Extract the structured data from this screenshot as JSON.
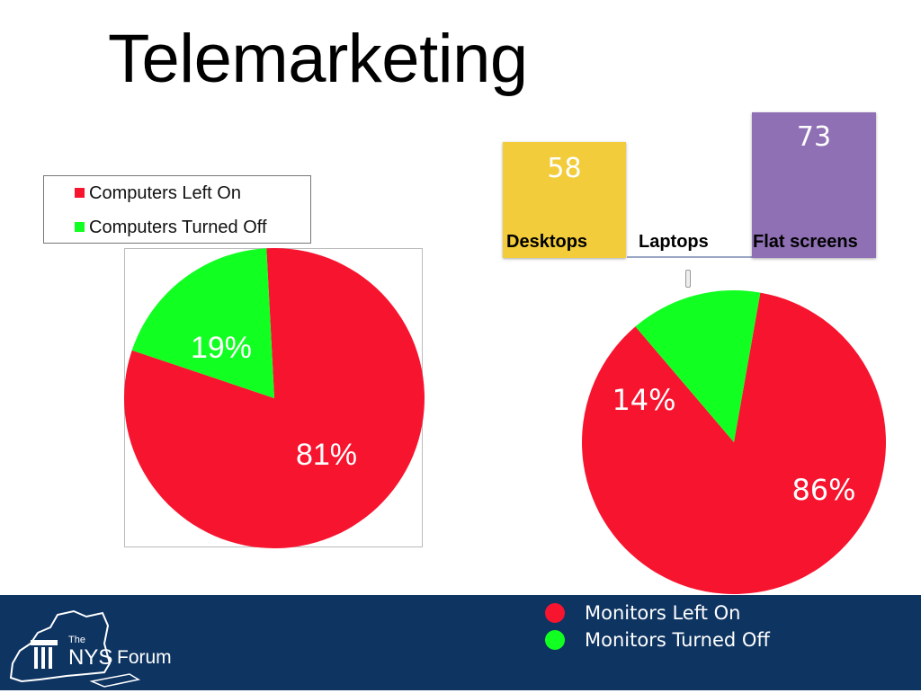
{
  "title": "Telemarketing",
  "colors": {
    "red": "#f7142f",
    "green": "#12ff22",
    "footer_bg": "#0e3462",
    "desktops_tile": "#f2cc3a",
    "flat_tile": "#8f70b4"
  },
  "logo": {
    "the": "The",
    "nys": "NYS",
    "forum": "Forum",
    "icon": "new-york-state-map-logo"
  },
  "chart_data": [
    {
      "type": "pie",
      "title": "",
      "legend": [
        "Computers Left On",
        "Computers Turned Off"
      ],
      "slices": [
        {
          "label": "Computers Left On",
          "value": 81,
          "display": "81%",
          "color": "#f7142f"
        },
        {
          "label": "Computers Turned Off",
          "value": 19,
          "display": "19%",
          "color": "#12ff22"
        }
      ],
      "legend_placement": "top-left"
    },
    {
      "type": "bar",
      "title": "",
      "categories": [
        "Desktops",
        "Laptops",
        "Flat screens"
      ],
      "values": [
        58,
        1,
        73
      ],
      "value_labels": [
        "58",
        "",
        "73"
      ],
      "colors": [
        "#f2cc3a",
        "#8f70b4",
        "#8f70b4"
      ]
    },
    {
      "type": "pie",
      "title": "",
      "legend": [
        "Monitors Left On",
        "Monitors Turned Off"
      ],
      "slices": [
        {
          "label": "Monitors Left On",
          "value": 86,
          "display": "86%",
          "color": "#f7142f"
        },
        {
          "label": "Monitors Turned Off",
          "value": 14,
          "display": "14%",
          "color": "#12ff22"
        }
      ],
      "legend_placement": "bottom"
    }
  ]
}
